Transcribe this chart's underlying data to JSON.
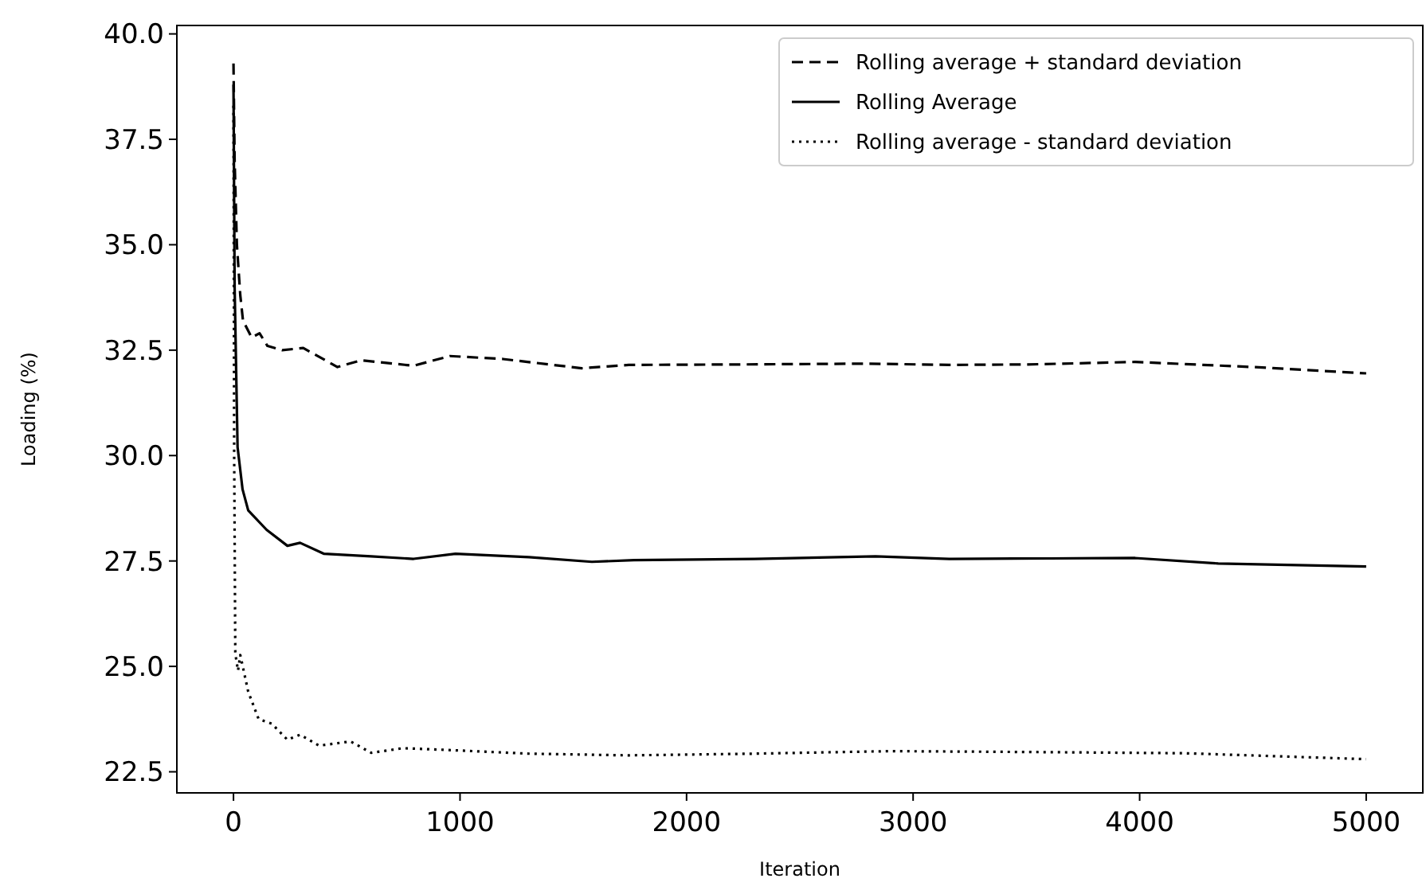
{
  "chart_data": {
    "type": "line",
    "xlabel": "Iteration",
    "ylabel": "Loading (%)",
    "xlim": [
      -250,
      5250
    ],
    "ylim": [
      22.0,
      40.2
    ],
    "xticks": [
      0,
      1000,
      2000,
      3000,
      4000,
      5000
    ],
    "yticks": [
      {
        "value": 22.5,
        "label": "22.5"
      },
      {
        "value": 25,
        "label": "25.0"
      },
      {
        "value": 27.5,
        "label": "27.5"
      },
      {
        "value": 30,
        "label": "30.0"
      },
      {
        "value": 32.5,
        "label": "32.5"
      },
      {
        "value": 35,
        "label": "35.0"
      },
      {
        "value": 37.5,
        "label": "37.5"
      },
      {
        "value": 40,
        "label": "40.0"
      }
    ],
    "grid": false,
    "legend": "top right",
    "series": [
      {
        "name": "Rolling average + standard deviation",
        "color": "#000000",
        "line_style": "dashed",
        "x": [
          0,
          5,
          15,
          30,
          42,
          80,
          115,
          150,
          215,
          308,
          459,
          563,
          795,
          955,
          1189,
          1537,
          1745,
          2200,
          2800,
          3160,
          3500,
          3980,
          4500,
          5000
        ],
        "values": [
          39.3,
          37,
          35,
          33.8,
          33.2,
          32.8,
          32.9,
          32.6,
          32.5,
          32.55,
          32.1,
          32.26,
          32.13,
          32.36,
          32.29,
          32.07,
          32.15,
          32.16,
          32.18,
          32.15,
          32.16,
          32.22,
          32.1,
          31.95
        ]
      },
      {
        "name": "Rolling Average",
        "color": "#000000",
        "line_style": "solid",
        "x": [
          0,
          5,
          18,
          40,
          65,
          146,
          238,
          294,
          400,
          608,
          795,
          980,
          1304,
          1582,
          1768,
          2300,
          2834,
          3160,
          3600,
          3980,
          4347,
          5000
        ],
        "values": [
          38.8,
          34,
          30.2,
          29.2,
          28.7,
          28.24,
          27.86,
          27.93,
          27.67,
          27.61,
          27.55,
          27.67,
          27.59,
          27.48,
          27.52,
          27.55,
          27.61,
          27.55,
          27.56,
          27.57,
          27.44,
          27.37
        ]
      },
      {
        "name": "Rolling average - standard deviation",
        "color": "#000000",
        "line_style": "dotted",
        "x": [
          0,
          3,
          8,
          20,
          30,
          65,
          111,
          169,
          238,
          294,
          378,
          517,
          608,
          748,
          935,
          1304,
          1745,
          2300,
          2900,
          3500,
          4200,
          5000
        ],
        "values": [
          38.3,
          30,
          25.3,
          24.9,
          25.27,
          24.4,
          23.75,
          23.64,
          23.26,
          23.38,
          23.12,
          23.22,
          22.95,
          23.06,
          23.02,
          22.93,
          22.89,
          22.93,
          22.99,
          22.97,
          22.94,
          22.8
        ]
      }
    ]
  }
}
